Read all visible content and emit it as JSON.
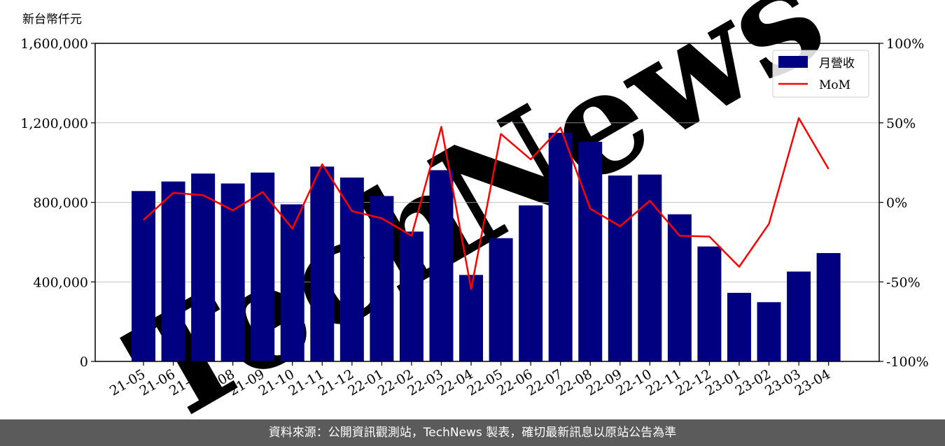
{
  "chart_data": {
    "type": "bar",
    "ylabel": "新台幣仟元",
    "categories": [
      "21-05",
      "21-06",
      "21-07",
      "21-08",
      "21-09",
      "21-10",
      "21-11",
      "21-12",
      "22-01",
      "22-02",
      "22-03",
      "22-04",
      "22-05",
      "22-06",
      "22-07",
      "22-08",
      "22-09",
      "22-10",
      "22-11",
      "22-12",
      "23-01",
      "23-02",
      "23-03",
      "23-04"
    ],
    "series": [
      {
        "name": "月營收",
        "axis": "left",
        "values": [
          857000,
          905000,
          945000,
          895000,
          950000,
          790000,
          980000,
          925000,
          832000,
          653000,
          962000,
          435000,
          620000,
          785000,
          1150000,
          1105000,
          935000,
          940000,
          740000,
          578000,
          345000,
          298000,
          452000,
          545000
        ],
        "color": "#000080"
      },
      {
        "name": "MoM",
        "axis": "right",
        "type": "line",
        "values": [
          -11,
          6,
          4.5,
          -5,
          6.5,
          -16.5,
          24,
          -5.5,
          -10,
          -21,
          47.5,
          -54.5,
          43,
          27,
          47,
          -4,
          -15,
          1,
          -21,
          -21.5,
          -40.5,
          -13.5,
          53,
          21
        ],
        "color": "#ff0000"
      }
    ],
    "ylim": [
      0,
      1600000
    ],
    "y_ticks": [
      "0",
      "400,000",
      "800,000",
      "1,200,000",
      "1,600,000"
    ],
    "y2lim": [
      -100,
      100
    ],
    "y2_ticks": [
      "-100%",
      "-50%",
      "0%",
      "50%",
      "100%"
    ],
    "grid": "horizontal",
    "legend_position": "top-right"
  },
  "footer": {
    "text": "資料來源：公開資訊觀測站，TechNews 製表，確切最新訊息以原站公告為準"
  }
}
